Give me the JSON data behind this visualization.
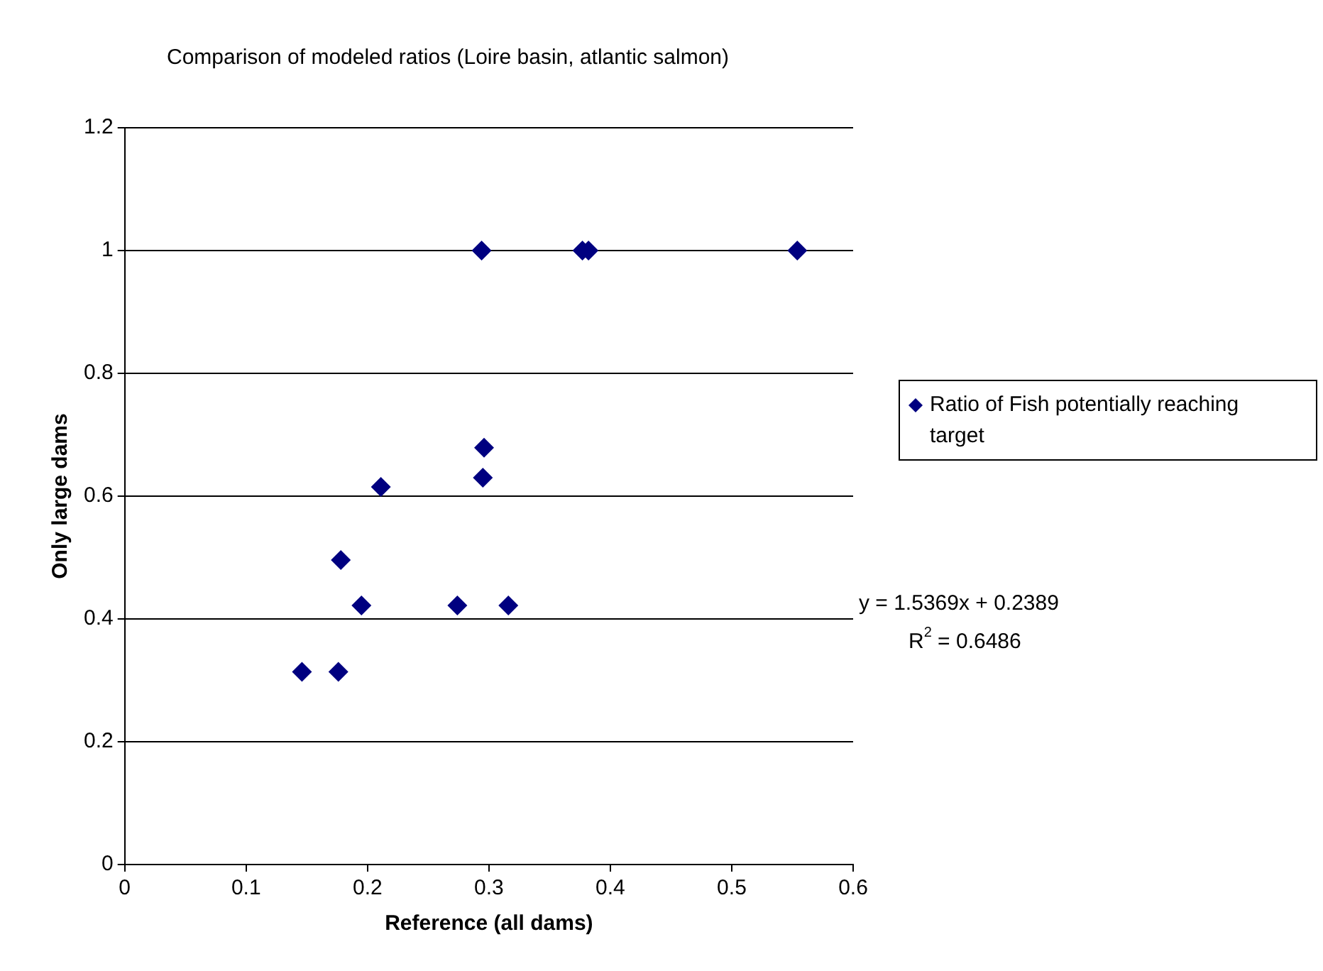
{
  "chart_data": {
    "type": "scatter",
    "title": "Comparison of modeled ratios (Loire basin, atlantic salmon)",
    "xlabel": "Reference (all dams)",
    "ylabel": "Only large dams",
    "series": [
      {
        "name": "Ratio of Fish potentially reaching target",
        "color": "#000080",
        "x": [
          0.146,
          0.176,
          0.195,
          0.178,
          0.211,
          0.274,
          0.316,
          0.295,
          0.296,
          0.294,
          0.377,
          0.382,
          0.554
        ],
        "values": [
          0.314,
          0.314,
          0.422,
          0.496,
          0.615,
          0.422,
          0.422,
          0.63,
          0.679,
          1.0,
          1.0,
          1.0,
          1.0
        ]
      }
    ],
    "xlim": [
      0,
      0.6
    ],
    "xticks": [
      0,
      0.1,
      0.2,
      0.3,
      0.4,
      0.5,
      0.6
    ],
    "ylim": [
      0,
      1.2
    ],
    "yticks": [
      0,
      0.2,
      0.4,
      0.6,
      0.8,
      1,
      1.2
    ],
    "grid": "y",
    "legend": "right",
    "marker": "diamond",
    "annotations": [
      "y = 1.5369x + 0.2389",
      "R$^{2}$ = 0.6486"
    ]
  }
}
